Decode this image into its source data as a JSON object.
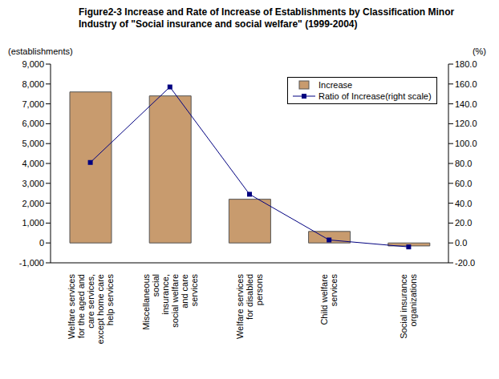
{
  "chart_data": {
    "type": "bar",
    "title": "Figure2-3   Increase and Rate of Increase of Establishments by Classification Minor Industry of \"Social insurance and social welfare\"  (1999-2004)",
    "y_label": "(establishments)",
    "y2_label": "(%)",
    "categories": [
      "Welfare services for the aged and care services, except home care help services",
      "Miscellaneous social insurance, social welfare and care services",
      "Welfare services for disabled persons",
      "Child welfare services",
      "Social insurance organizations"
    ],
    "series": [
      {
        "name": "Increase",
        "type": "bar",
        "color": "#c89b6e",
        "values": [
          7600,
          7400,
          2200,
          580,
          -150
        ]
      },
      {
        "name": "Ratio of Increase(right scale)",
        "type": "line",
        "axis": "y2",
        "color": "#000080",
        "marker": "square",
        "values": [
          81,
          157,
          49,
          3,
          -4
        ]
      }
    ],
    "ylim": [
      -1000,
      9000
    ],
    "yticks": [
      {
        "value": -1000,
        "label": "-1,000"
      },
      0,
      {
        "value": 1000,
        "label": "1,000"
      },
      {
        "value": 2000,
        "label": "2,000"
      },
      {
        "value": 3000,
        "label": "3,000"
      },
      {
        "value": 4000,
        "label": "4,000"
      },
      {
        "value": 5000,
        "label": "5,000"
      },
      {
        "value": 6000,
        "label": "6,000"
      },
      {
        "value": 7000,
        "label": "7,000"
      },
      {
        "value": 8000,
        "label": "8,000"
      },
      {
        "value": 9000,
        "label": "9,000"
      }
    ],
    "y2lim": [
      -20,
      180
    ],
    "y2ticks": [
      {
        "value": -20,
        "label": "-20.0"
      },
      {
        "value": 0,
        "label": "0.0"
      },
      {
        "value": 20,
        "label": "20.0"
      },
      {
        "value": 40,
        "label": "40.0"
      },
      {
        "value": 60,
        "label": "60.0"
      },
      {
        "value": 80,
        "label": "80.0"
      },
      {
        "value": 100,
        "label": "100.0"
      },
      {
        "value": 120,
        "label": "120.0"
      },
      {
        "value": 140,
        "label": "140.0"
      },
      {
        "value": 160,
        "label": "160.0"
      },
      {
        "value": 180,
        "label": "180.0"
      }
    ],
    "grid": false,
    "legend": "upper right"
  }
}
